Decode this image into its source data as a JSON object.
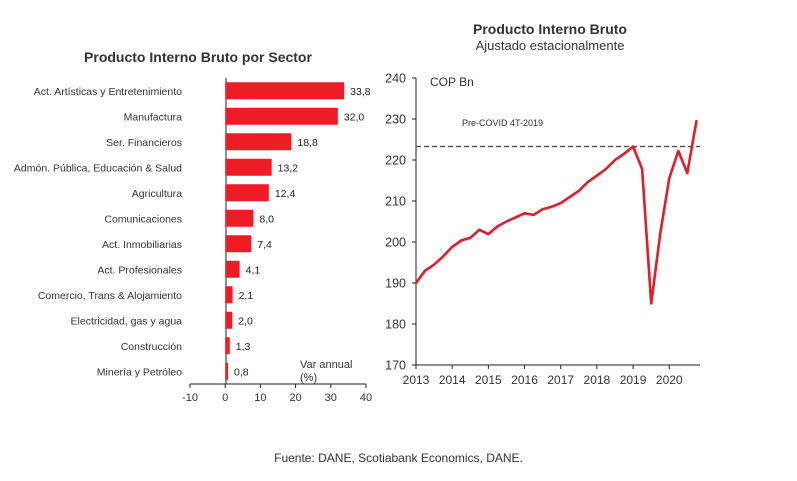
{
  "chart_data": [
    {
      "type": "bar",
      "orientation": "horizontal",
      "title": "Producto Interno Bruto por Sector",
      "categories": [
        "Act. Artísticas y Entretenimiento",
        "Manufactura",
        "Ser. Financieros",
        "Admón. Pública, Educación & Salud",
        "Agricultura",
        "Comunicaciones",
        "Act. Inmobiliarias",
        "Act. Profesionales",
        "Comercio, Trans & Alojamiento",
        "Electricidad, gas y agua",
        "Construcción",
        "Minería y Petróleo"
      ],
      "values": [
        33.8,
        32.0,
        18.8,
        13.2,
        12.4,
        8.0,
        7.4,
        4.1,
        2.1,
        2.0,
        1.3,
        0.8
      ],
      "value_labels": [
        "33,8",
        "32,0",
        "18,8",
        "13,2",
        "12,4",
        "8,0",
        "7,4",
        "4,1",
        "2,1",
        "2,0",
        "1,3",
        "0,8"
      ],
      "xlim": [
        -10,
        40
      ],
      "xticks": [
        -10,
        0,
        10,
        20,
        30,
        40
      ],
      "xtick_labels": [
        "-10",
        "0",
        "10",
        "20",
        "30",
        "40"
      ],
      "unit_label_line1": "Var annual",
      "unit_label_line2": "(%)",
      "color": "#ee1c25"
    },
    {
      "type": "line",
      "title": "Producto Interno Bruto",
      "subtitle": "Ajustado estacionalmente",
      "ylabel": "COP Bn",
      "ylim": [
        170,
        240
      ],
      "yticks": [
        170,
        180,
        190,
        200,
        210,
        220,
        230,
        240
      ],
      "ytick_labels": [
        "170",
        "180",
        "190",
        "200",
        "210",
        "220",
        "230",
        "240"
      ],
      "xlim": [
        2013,
        2020.85
      ],
      "xticks": [
        2013,
        2014,
        2015,
        2016,
        2017,
        2018,
        2019,
        2020
      ],
      "xtick_labels": [
        "2013",
        "2014",
        "2015",
        "2016",
        "2017",
        "2018",
        "2019",
        "2020"
      ],
      "x": [
        2013.0,
        2013.25,
        2013.5,
        2013.75,
        2014.0,
        2014.25,
        2014.5,
        2014.75,
        2015.0,
        2015.25,
        2015.5,
        2015.75,
        2016.0,
        2016.25,
        2016.5,
        2016.75,
        2017.0,
        2017.25,
        2017.5,
        2017.75,
        2018.0,
        2018.25,
        2018.5,
        2018.75,
        2019.0,
        2019.25,
        2019.5,
        2019.75,
        2020.0,
        2020.25,
        2020.5,
        2020.75
      ],
      "y": [
        190.0,
        193.0,
        194.5,
        196.5,
        198.8,
        200.4,
        201.0,
        203.0,
        201.9,
        203.8,
        205.0,
        206.0,
        207.0,
        206.6,
        208.0,
        208.6,
        209.5,
        211.0,
        212.5,
        214.6,
        216.2,
        217.8,
        220.0,
        221.5,
        223.3,
        217.8,
        185.0,
        202.0,
        215.5,
        222.2,
        216.8,
        229.5
      ],
      "color": "#e41b2b",
      "reference_line": {
        "y": 223.3,
        "label": "Pre-COVID  4T-2019",
        "style": "dashed",
        "color": "#444444"
      }
    }
  ],
  "footer": {
    "source": "Fuente:  DANE, Scotiabank Economics, DANE."
  }
}
